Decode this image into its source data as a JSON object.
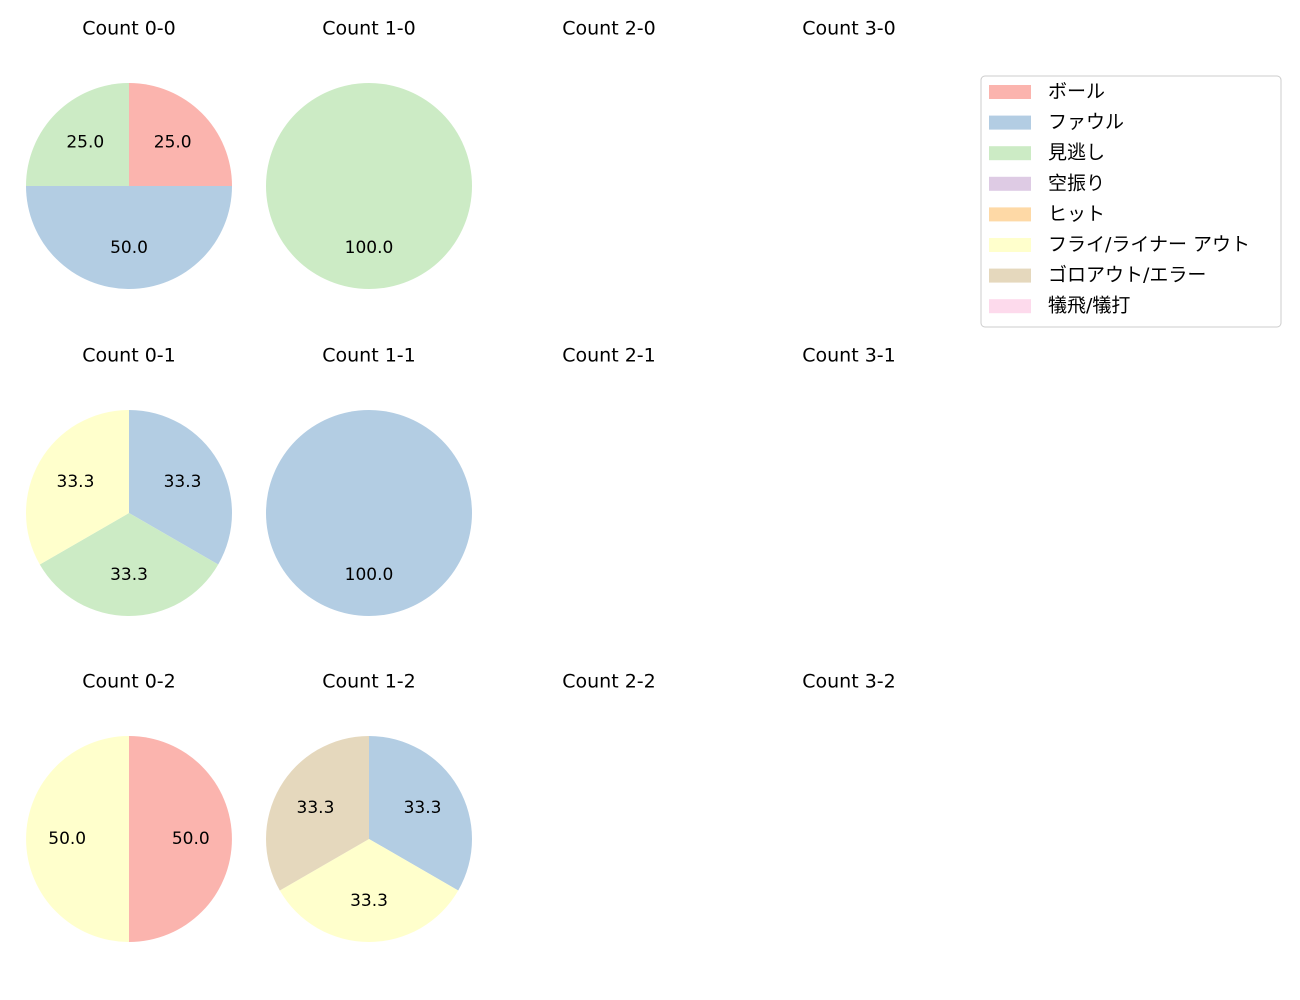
{
  "legend": {
    "items": [
      {
        "name": "ボール",
        "color": "#fbb4ae"
      },
      {
        "name": "ファウル",
        "color": "#b3cde3"
      },
      {
        "name": "見逃し",
        "color": "#ccebc5"
      },
      {
        "name": "空振り",
        "color": "#decbe4"
      },
      {
        "name": "ヒット",
        "color": "#fed9a6"
      },
      {
        "name": "フライ/ライナー アウト",
        "color": "#ffffcc"
      },
      {
        "name": "ゴロアウト/エラー",
        "color": "#e5d8bd"
      },
      {
        "name": "犠飛/犠打",
        "color": "#fddaec"
      }
    ]
  },
  "chart_data": [
    {
      "type": "pie",
      "title": "Count 0-0",
      "categories": [
        "ボール",
        "ファウル",
        "見逃し"
      ],
      "values": [
        25.0,
        50.0,
        25.0
      ],
      "value_labels": [
        "25.0",
        "50.0",
        "25.0"
      ],
      "colors": [
        "#fbb4ae",
        "#b3cde3",
        "#ccebc5"
      ]
    },
    {
      "type": "pie",
      "title": "Count 1-0",
      "categories": [
        "見逃し"
      ],
      "values": [
        100.0
      ],
      "value_labels": [
        "100.0"
      ],
      "colors": [
        "#ccebc5"
      ]
    },
    {
      "type": "pie",
      "title": "Count 2-0",
      "categories": [],
      "values": [],
      "value_labels": [],
      "colors": []
    },
    {
      "type": "pie",
      "title": "Count 3-0",
      "categories": [],
      "values": [],
      "value_labels": [],
      "colors": []
    },
    {
      "type": "pie",
      "title": "Count 0-1",
      "categories": [
        "ファウル",
        "見逃し",
        "フライ/ライナー アウト"
      ],
      "values": [
        33.3,
        33.3,
        33.3
      ],
      "value_labels": [
        "33.3",
        "33.3",
        "33.3"
      ],
      "colors": [
        "#b3cde3",
        "#ccebc5",
        "#ffffcc"
      ]
    },
    {
      "type": "pie",
      "title": "Count 1-1",
      "categories": [
        "ファウル"
      ],
      "values": [
        100.0
      ],
      "value_labels": [
        "100.0"
      ],
      "colors": [
        "#b3cde3"
      ]
    },
    {
      "type": "pie",
      "title": "Count 2-1",
      "categories": [],
      "values": [],
      "value_labels": [],
      "colors": []
    },
    {
      "type": "pie",
      "title": "Count 3-1",
      "categories": [],
      "values": [],
      "value_labels": [],
      "colors": []
    },
    {
      "type": "pie",
      "title": "Count 0-2",
      "categories": [
        "ボール",
        "フライ/ライナー アウト"
      ],
      "values": [
        50.0,
        50.0
      ],
      "value_labels": [
        "50.0",
        "50.0"
      ],
      "colors": [
        "#fbb4ae",
        "#ffffcc"
      ]
    },
    {
      "type": "pie",
      "title": "Count 1-2",
      "categories": [
        "ファウル",
        "フライ/ライナー アウト",
        "ゴロアウト/エラー"
      ],
      "values": [
        33.3,
        33.3,
        33.3
      ],
      "value_labels": [
        "33.3",
        "33.3",
        "33.3"
      ],
      "colors": [
        "#b3cde3",
        "#ffffcc",
        "#e5d8bd"
      ]
    },
    {
      "type": "pie",
      "title": "Count 2-2",
      "categories": [],
      "values": [],
      "value_labels": [],
      "colors": []
    },
    {
      "type": "pie",
      "title": "Count 3-2",
      "categories": [],
      "values": [],
      "value_labels": [],
      "colors": []
    }
  ]
}
